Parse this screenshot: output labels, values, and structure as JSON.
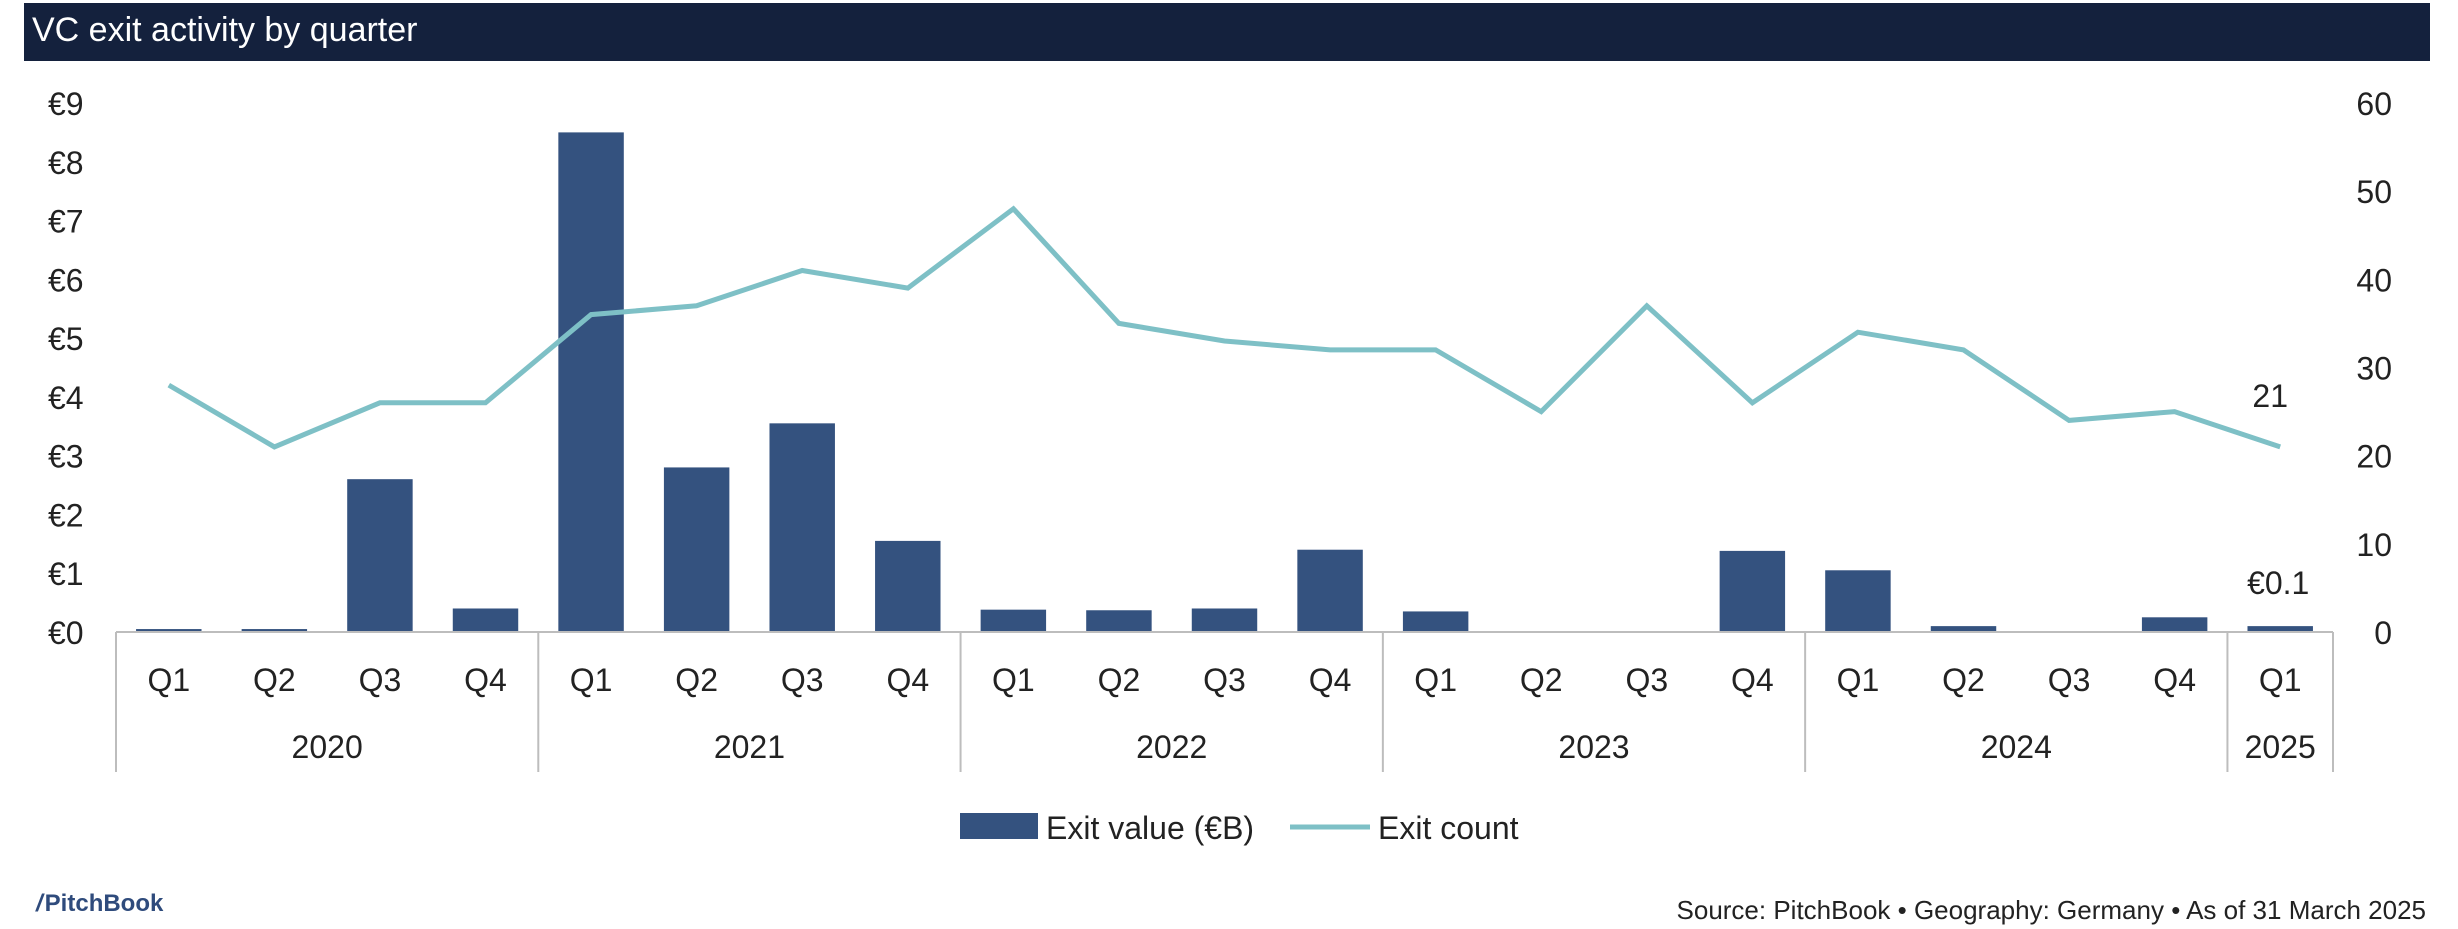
{
  "chart_data": {
    "type": "bar",
    "title": "VC exit activity by quarter",
    "quarters": [
      "Q1",
      "Q2",
      "Q3",
      "Q4",
      "Q1",
      "Q2",
      "Q3",
      "Q4",
      "Q1",
      "Q2",
      "Q3",
      "Q4",
      "Q1",
      "Q2",
      "Q3",
      "Q4",
      "Q1",
      "Q2",
      "Q3",
      "Q4",
      "Q1"
    ],
    "years": [
      {
        "label": "2020",
        "count": 4
      },
      {
        "label": "2021",
        "count": 4
      },
      {
        "label": "2022",
        "count": 4
      },
      {
        "label": "2023",
        "count": 4
      },
      {
        "label": "2024",
        "count": 4
      },
      {
        "label": "2025",
        "count": 1
      }
    ],
    "series": [
      {
        "name": "Exit value (€B)",
        "type": "bar",
        "axis": "left",
        "color": "#34527f",
        "values": [
          0.05,
          0.05,
          2.6,
          0.4,
          8.5,
          2.8,
          3.55,
          1.55,
          0.38,
          0.37,
          0.4,
          1.4,
          0.35,
          0,
          0,
          1.38,
          1.05,
          0.1,
          0,
          0.25,
          0.1
        ]
      },
      {
        "name": "Exit count",
        "type": "line",
        "axis": "right",
        "color": "#7ec0c6",
        "values": [
          28,
          21,
          26,
          26,
          36,
          37,
          41,
          39,
          48,
          35,
          33,
          32,
          32,
          25,
          37,
          26,
          34,
          32,
          24,
          25,
          21
        ]
      }
    ],
    "y_left": {
      "min": 0,
      "max": 9,
      "step": 1,
      "ticks": [
        "€0",
        "€1",
        "€2",
        "€3",
        "€4",
        "€5",
        "€6",
        "€7",
        "€8",
        "€9"
      ]
    },
    "y_right": {
      "min": 0,
      "max": 60,
      "step": 10,
      "ticks": [
        "0",
        "10",
        "20",
        "30",
        "40",
        "50",
        "60"
      ]
    },
    "annotations": {
      "last_bar_label": "€0.1",
      "last_line_label": "21"
    },
    "grid": false,
    "legend": "bottom-center"
  },
  "footer": {
    "source": "Source: PitchBook • Geography: Germany • As of 31 March 2025",
    "logo": "PitchBook",
    "logo_mark": "/"
  }
}
